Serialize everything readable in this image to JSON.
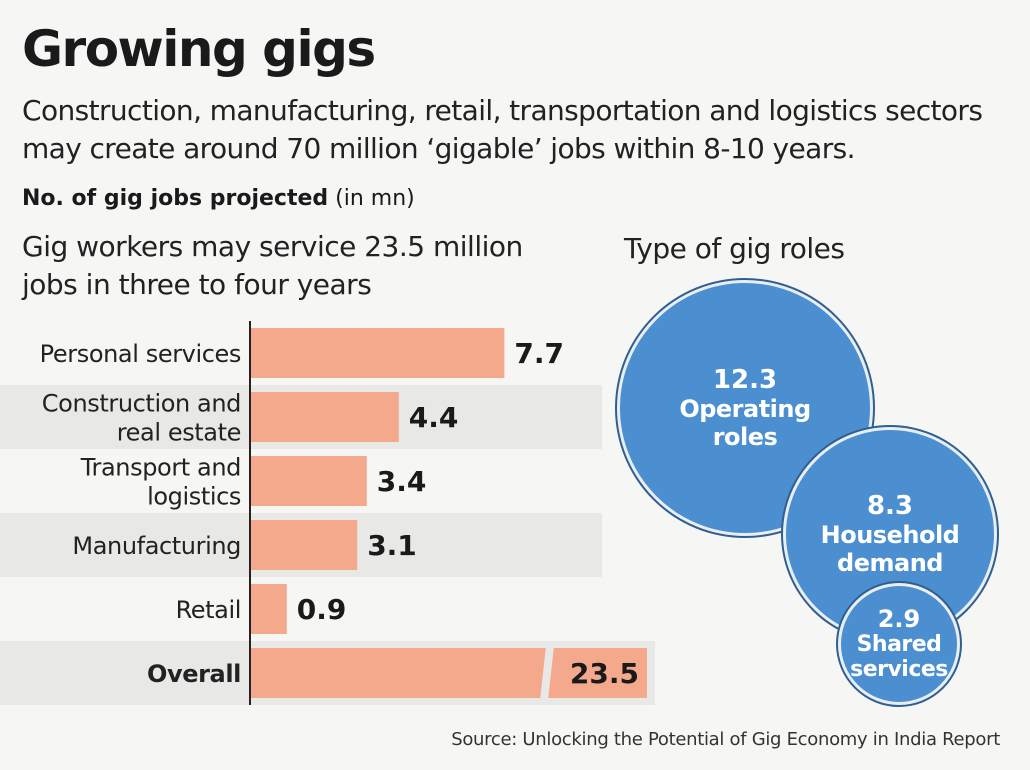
{
  "title": "Growing gigs",
  "subtitle": "Construction, manufacturing, retail, transportation and logistics sectors may create around 70 million ‘gigable’ jobs within 8-10 years.",
  "metric_label": "No. of gig jobs projected",
  "metric_unit": "(in mn)",
  "left_heading": "Gig workers may service 23.5 million jobs in three to four years",
  "right_heading": "Type of gig roles",
  "source": "Source: Unlocking the Potential of Gig Economy in India Report",
  "colors": {
    "bar": "#f4a98d",
    "bubble": "#4c8fd1",
    "stripe": "#e8e8e6"
  },
  "chart_data": [
    {
      "type": "bar",
      "orientation": "horizontal",
      "title": "Gig workers may service 23.5 million jobs in three to four years",
      "categories": [
        [
          "Personal services"
        ],
        [
          "Construction and",
          "real estate"
        ],
        [
          "Transport and",
          "logistics"
        ],
        [
          "Manufacturing"
        ],
        [
          "Retail"
        ],
        [
          "Overall"
        ]
      ],
      "values": [
        7.7,
        4.4,
        3.4,
        3.1,
        0.9,
        23.5
      ],
      "value_labels": [
        "7.7",
        "4.4",
        "3.4",
        "3.1",
        "0.9",
        "23.5"
      ],
      "bold_categories": [
        "Overall"
      ],
      "xlim": [
        0,
        23.5
      ],
      "axis_break_on": "Overall"
    },
    {
      "type": "bubble",
      "title": "Type of gig roles",
      "items": [
        {
          "value": 12.3,
          "value_label": "12.3",
          "label": [
            "Operating",
            "roles"
          ]
        },
        {
          "value": 8.3,
          "value_label": "8.3",
          "label": [
            "Household",
            "demand"
          ]
        },
        {
          "value": 2.9,
          "value_label": "2.9",
          "label": [
            "Shared",
            "services"
          ]
        }
      ]
    }
  ]
}
